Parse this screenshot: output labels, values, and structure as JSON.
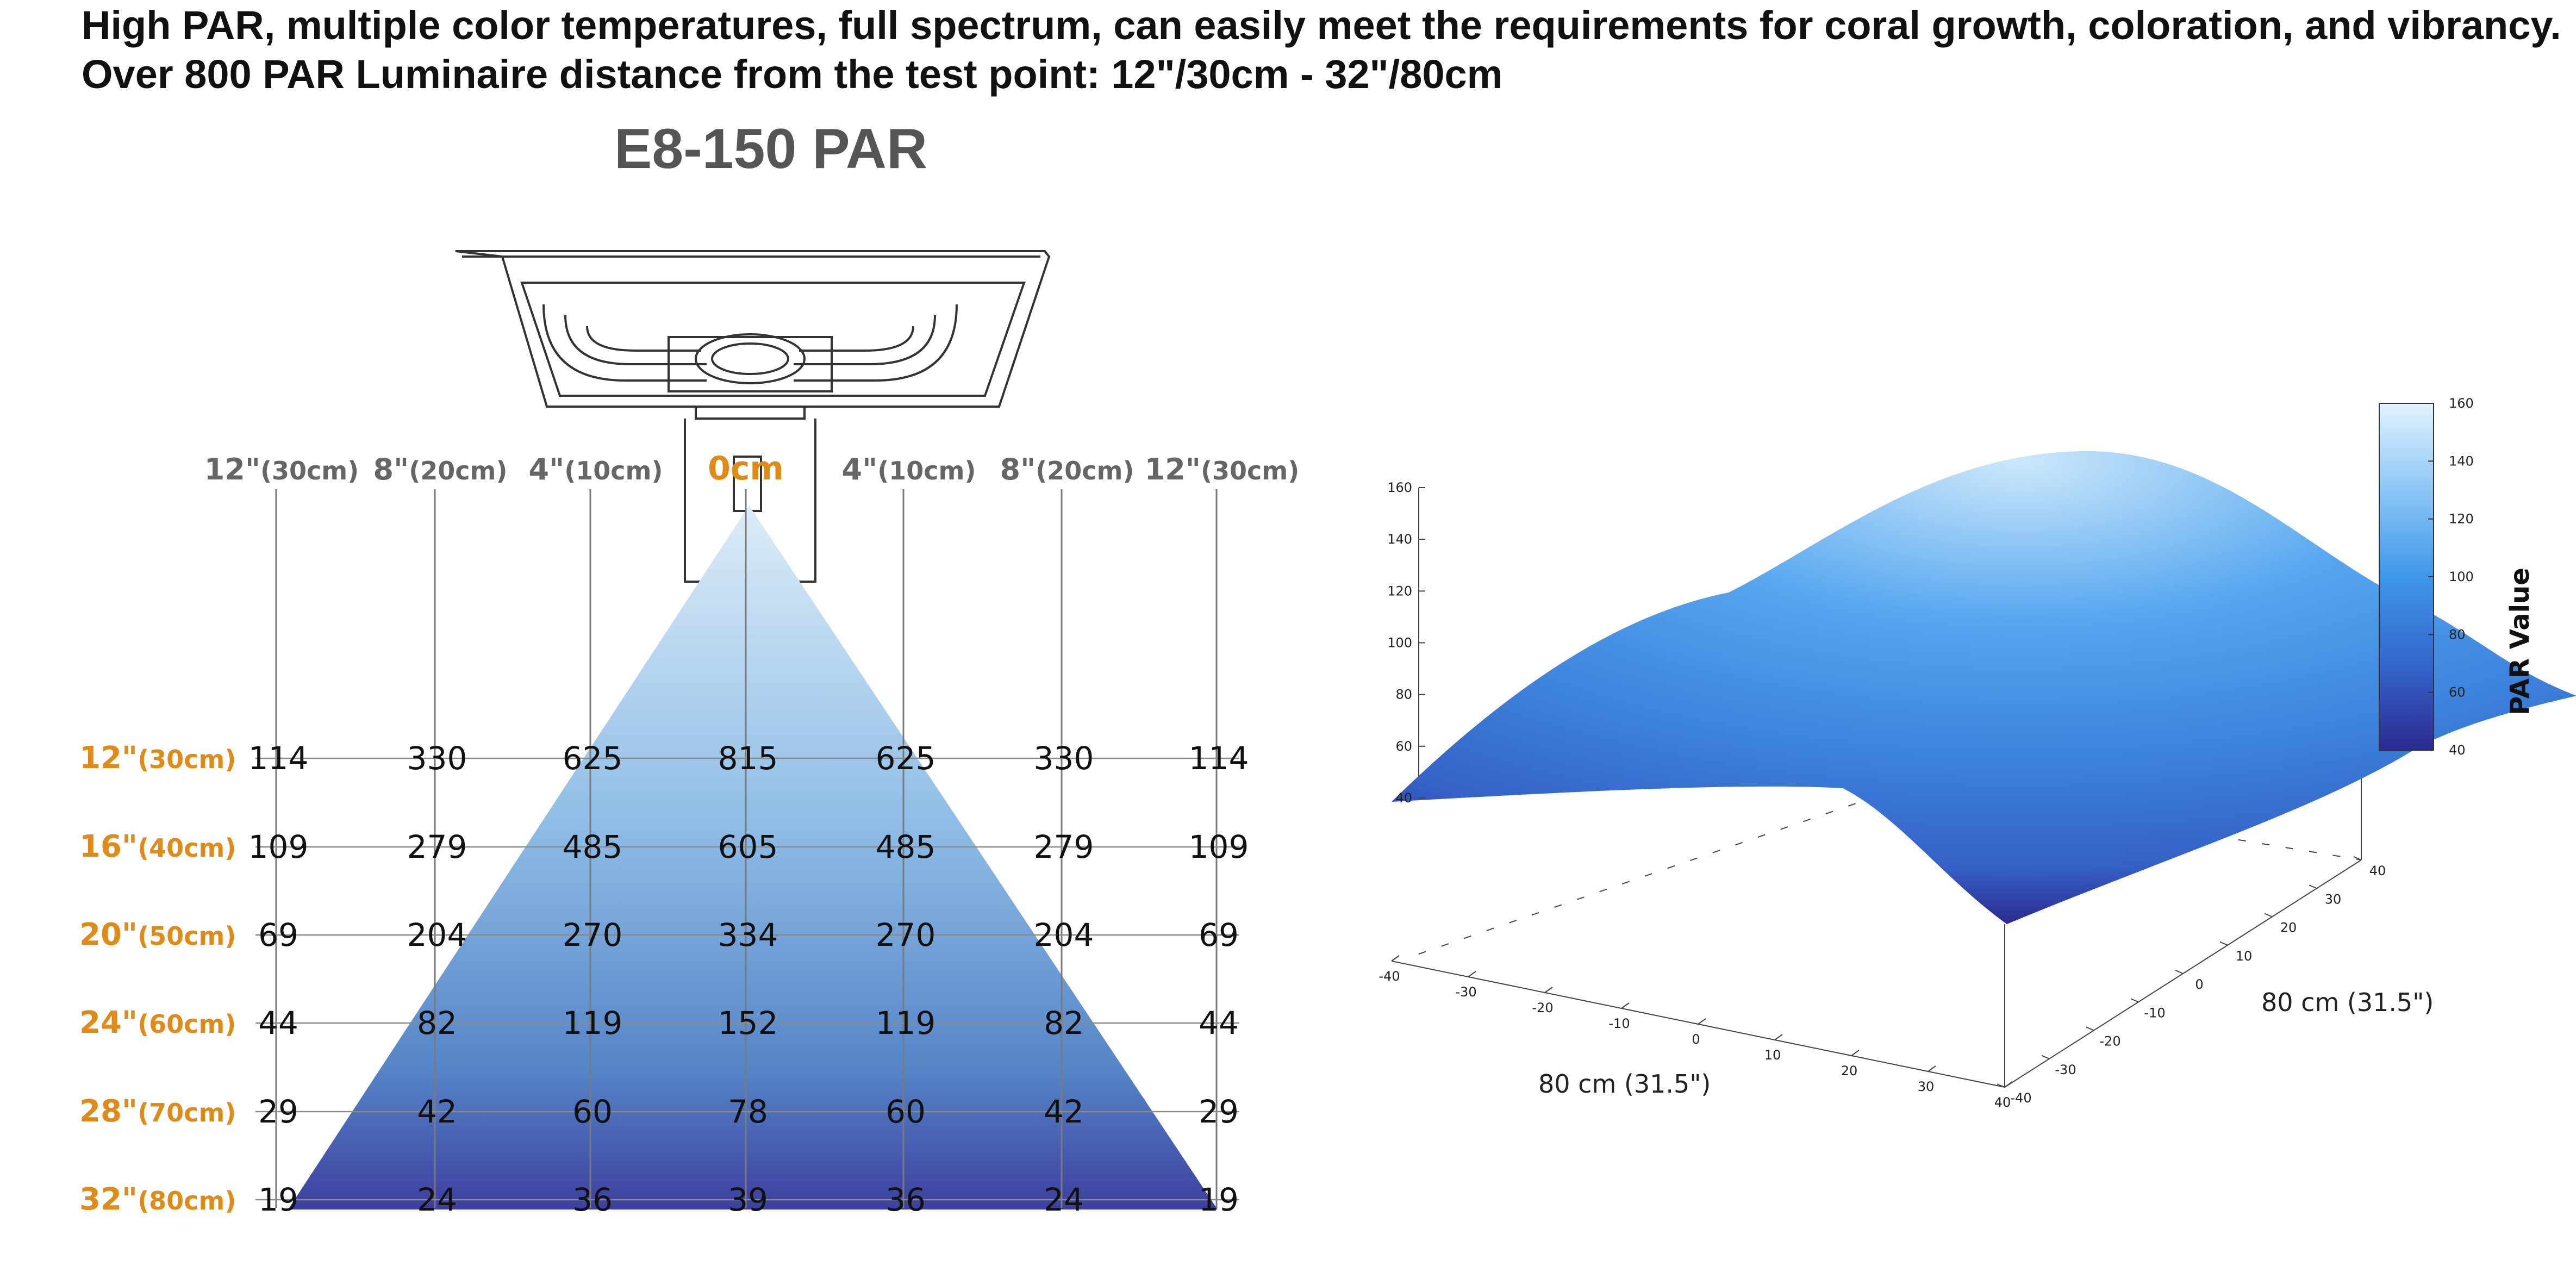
{
  "headline": {
    "line1": "High PAR, multiple color temperatures, full spectrum, can easily meet the requirements for coral growth, coloration, and vibrancy.",
    "line2": "Over 800 PAR Luminaire distance from the test point: 12\"/30cm - 32\"/80cm"
  },
  "colors": {
    "accent": "#e08a17",
    "beam_top": "#dcecf8",
    "beam_bottom": "#3d3f9e",
    "surface_peak": "#cce8fb",
    "surface_low": "#2c2a8f"
  },
  "chart_data": [
    {
      "type": "table",
      "title": "E8-150 PAR",
      "columns": [
        "12\"(30cm)",
        "8\"(20cm)",
        "4\"(10cm)",
        "0cm",
        "4\"(10cm)",
        "8\"(20cm)",
        "12\"(30cm)"
      ],
      "rows": [
        "12\"(30cm)",
        "16\"(40cm)",
        "20\"(50cm)",
        "24\"(60cm)",
        "28\"(70cm)",
        "32\"(80cm)"
      ],
      "values": [
        [
          114,
          330,
          625,
          815,
          625,
          330,
          114
        ],
        [
          109,
          279,
          485,
          605,
          485,
          279,
          109
        ],
        [
          69,
          204,
          270,
          334,
          270,
          204,
          69
        ],
        [
          44,
          82,
          119,
          152,
          119,
          82,
          44
        ],
        [
          29,
          42,
          60,
          78,
          60,
          42,
          29
        ],
        [
          19,
          24,
          36,
          39,
          36,
          24,
          19
        ]
      ],
      "column_header_parts": [
        {
          "big": "12\"",
          "small": "(30cm)"
        },
        {
          "big": "8\"",
          "small": "(20cm)"
        },
        {
          "big": "4\"",
          "small": "(10cm)"
        },
        {
          "big": "0cm",
          "small": ""
        },
        {
          "big": "4\"",
          "small": "(10cm)"
        },
        {
          "big": "8\"",
          "small": "(20cm)"
        },
        {
          "big": "12\"",
          "small": "(30cm)"
        }
      ],
      "row_header_parts": [
        {
          "big": "12\"",
          "small": "(30cm)"
        },
        {
          "big": "16\"",
          "small": "(40cm)"
        },
        {
          "big": "20\"",
          "small": "(50cm)"
        },
        {
          "big": "24\"",
          "small": "(60cm)"
        },
        {
          "big": "28\"",
          "small": "(70cm)"
        },
        {
          "big": "32\"",
          "small": "(80cm)"
        }
      ]
    },
    {
      "type": "heatmap",
      "style": "3d-surface",
      "xlabel": "80 cm (31.5\")",
      "ylabel": "80 cm (31.5\")",
      "colorbar_label": "PAR Value",
      "x_ticks": [
        -40,
        -30,
        -20,
        -10,
        0,
        10,
        20,
        30,
        40
      ],
      "y_ticks": [
        -40,
        -30,
        -20,
        -10,
        0,
        10,
        20,
        30,
        40
      ],
      "z_ticks": [
        40,
        60,
        80,
        100,
        120,
        140,
        160
      ],
      "colorbar_ticks": [
        40,
        60,
        80,
        100,
        120,
        140,
        160
      ],
      "xlim": [
        -40,
        40
      ],
      "ylim": [
        -40,
        40
      ],
      "zlim": [
        40,
        160
      ],
      "peak": {
        "x": 0,
        "y": 0,
        "z": 160
      },
      "corners": [
        {
          "x": -40,
          "y": -40,
          "z": 45
        },
        {
          "x": 40,
          "y": -40,
          "z": 40
        },
        {
          "x": 40,
          "y": 40,
          "z": 80
        },
        {
          "x": -40,
          "y": 40,
          "z": 80
        }
      ]
    }
  ]
}
